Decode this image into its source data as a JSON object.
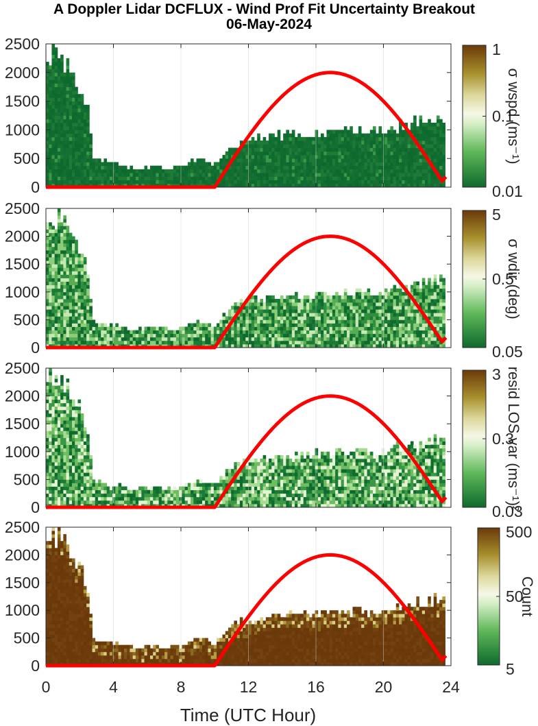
{
  "figure": {
    "title_line1": "A Doppler Lidar DCFLUX - Wind Prof Fit Uncertainty Breakout",
    "title_line2": "06-May-2024",
    "xlabel": "Time (UTC Hour)"
  },
  "colors": {
    "sun_curve": "#ff0000",
    "colormap_low": "#0f6a2e",
    "colormap_mid": "#f2f7e4",
    "colormap_high": "#6b3a0a"
  },
  "chart_data": [
    {
      "type": "heatmap",
      "panel": "wspd",
      "colorbar_label": "σ wspd (ms⁻¹)",
      "colorbar_ticks": [
        "1",
        "0.1",
        "0.01"
      ],
      "colorbar_scale": "log",
      "x_range": [
        0,
        24
      ],
      "y_range": [
        0,
        2500
      ],
      "y_ticks": [
        0,
        500,
        1000,
        1500,
        2000,
        2500
      ],
      "x_ticks": [
        0,
        4,
        8,
        12,
        16,
        20,
        24
      ],
      "grid": true
    },
    {
      "type": "heatmap",
      "panel": "wdir",
      "colorbar_label": "σ wdir (deg)",
      "colorbar_ticks": [
        "5",
        "0.5",
        "0.05"
      ],
      "colorbar_scale": "log",
      "x_range": [
        0,
        24
      ],
      "y_range": [
        0,
        2500
      ],
      "y_ticks": [
        0,
        500,
        1000,
        1500,
        2000,
        2500
      ],
      "x_ticks": [
        0,
        4,
        8,
        12,
        16,
        20,
        24
      ],
      "grid": true
    },
    {
      "type": "heatmap",
      "panel": "resid",
      "colorbar_label": "resid LOS var (ms⁻¹)²",
      "colorbar_ticks": [
        "3",
        "0.3",
        "0.03"
      ],
      "colorbar_scale": "log",
      "x_range": [
        0,
        24
      ],
      "y_range": [
        0,
        2500
      ],
      "y_ticks": [
        0,
        500,
        1000,
        1500,
        2000,
        2500
      ],
      "x_ticks": [
        0,
        4,
        8,
        12,
        16,
        20,
        24
      ],
      "grid": true
    },
    {
      "type": "heatmap",
      "panel": "count",
      "colorbar_label": "Count",
      "colorbar_ticks": [
        "500",
        "50",
        "5"
      ],
      "colorbar_scale": "log",
      "x_range": [
        0,
        24
      ],
      "y_range": [
        0,
        2500
      ],
      "y_ticks": [
        0,
        500,
        1000,
        1500,
        2000,
        2500
      ],
      "x_ticks": [
        0,
        4,
        8,
        12,
        16,
        20,
        24
      ],
      "grid": true
    }
  ],
  "sun_curve": {
    "start_hour": 10,
    "peak_hour": 17,
    "end_hour": 23.7,
    "peak_value": 2000,
    "base_value": 0
  },
  "profile_top": {
    "hours": [
      0,
      0.5,
      1,
      1.5,
      2,
      2.5,
      2.8,
      3,
      4,
      5,
      6,
      6.5,
      7,
      8,
      9,
      9.5,
      10,
      10.5,
      11,
      12,
      13,
      14,
      15,
      16,
      17,
      18,
      19,
      20,
      20.5,
      21,
      22,
      23,
      23.5,
      24
    ],
    "heights": [
      2100,
      2350,
      2200,
      1950,
      1750,
      1300,
      450,
      420,
      380,
      320,
      300,
      350,
      300,
      330,
      450,
      420,
      350,
      550,
      700,
      800,
      850,
      880,
      900,
      920,
      950,
      950,
      960,
      960,
      1000,
      1050,
      1100,
      1150,
      1200,
      1250
    ]
  }
}
